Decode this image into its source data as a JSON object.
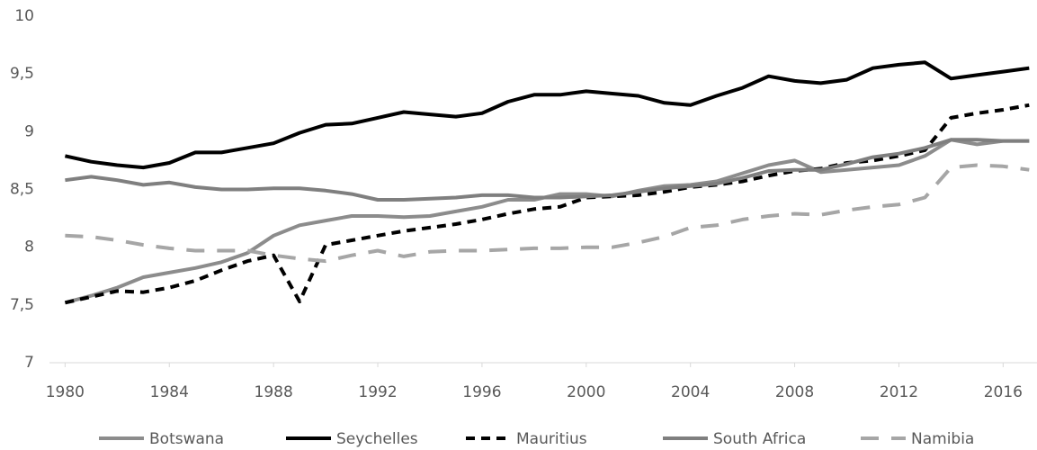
{
  "chart_data": {
    "type": "line",
    "x": [
      1980,
      1981,
      1982,
      1983,
      1984,
      1985,
      1986,
      1987,
      1988,
      1989,
      1990,
      1991,
      1992,
      1993,
      1994,
      1995,
      1996,
      1997,
      1998,
      1999,
      2000,
      2001,
      2002,
      2003,
      2004,
      2005,
      2006,
      2007,
      2008,
      2009,
      2010,
      2011,
      2012,
      2013,
      2014,
      2015,
      2016,
      2017
    ],
    "xlim": [
      1979.4,
      2017.3
    ],
    "xticks": [
      1980,
      1984,
      1988,
      1992,
      1996,
      2000,
      2004,
      2008,
      2012,
      2016
    ],
    "ylim": [
      7,
      10
    ],
    "yticks": [
      7,
      {
        "value": 7.5,
        "label": "7,5"
      },
      8,
      {
        "value": 8.5,
        "label": "8,5"
      },
      9,
      {
        "value": 9.5,
        "label": "9,5"
      },
      10
    ],
    "grid": false,
    "legend": "bottom",
    "series": [
      {
        "name": "Botswana",
        "color": "#8c8c8c",
        "style": "solid",
        "values": [
          7.52,
          7.58,
          7.65,
          7.74,
          7.78,
          7.82,
          7.87,
          7.95,
          8.1,
          8.19,
          8.23,
          8.27,
          8.27,
          8.26,
          8.27,
          8.31,
          8.35,
          8.41,
          8.41,
          8.46,
          8.46,
          8.44,
          8.49,
          8.53,
          8.54,
          8.57,
          8.64,
          8.71,
          8.75,
          8.65,
          8.67,
          8.69,
          8.71,
          8.79,
          8.93,
          8.89,
          8.92,
          8.92
        ]
      },
      {
        "name": "Seychelles",
        "color": "#000000",
        "style": "solid",
        "values": [
          8.79,
          8.74,
          8.71,
          8.69,
          8.73,
          8.82,
          8.82,
          8.86,
          8.9,
          8.99,
          9.06,
          9.07,
          9.12,
          9.17,
          9.15,
          9.13,
          9.16,
          9.26,
          9.32,
          9.32,
          9.35,
          9.33,
          9.31,
          9.25,
          9.23,
          9.31,
          9.38,
          9.48,
          9.44,
          9.42,
          9.45,
          9.55,
          9.58,
          9.6,
          9.46,
          9.49,
          9.52,
          9.55
        ]
      },
      {
        "name": "Mauritius",
        "color": "#000000",
        "style": "dashed",
        "values": [
          7.52,
          7.57,
          7.62,
          7.61,
          7.65,
          7.71,
          7.8,
          7.88,
          7.93,
          7.53,
          8.02,
          8.06,
          8.1,
          8.14,
          8.17,
          8.2,
          8.24,
          8.29,
          8.33,
          8.35,
          8.43,
          8.44,
          8.45,
          8.48,
          8.52,
          8.54,
          8.57,
          8.62,
          8.66,
          8.68,
          8.73,
          8.75,
          8.79,
          8.84,
          9.12,
          9.16,
          9.19,
          9.23
        ]
      },
      {
        "name": "South Africa",
        "color": "#7f7f7f",
        "style": "solid",
        "values": [
          8.58,
          8.61,
          8.58,
          8.54,
          8.56,
          8.52,
          8.5,
          8.5,
          8.51,
          8.51,
          8.49,
          8.46,
          8.41,
          8.41,
          8.42,
          8.43,
          8.45,
          8.45,
          8.43,
          8.43,
          8.44,
          8.45,
          8.48,
          8.51,
          8.53,
          8.55,
          8.6,
          8.66,
          8.67,
          8.67,
          8.72,
          8.78,
          8.81,
          8.86,
          8.93,
          8.93,
          8.92,
          8.92
        ]
      },
      {
        "name": "Namibia",
        "color": "#a6a6a6",
        "style": "dashed",
        "values": [
          8.1,
          8.09,
          8.06,
          8.02,
          7.99,
          7.97,
          7.97,
          7.97,
          7.93,
          7.9,
          7.88,
          7.93,
          7.97,
          7.92,
          7.96,
          7.97,
          7.97,
          7.98,
          7.99,
          7.99,
          8.0,
          8.0,
          8.04,
          8.09,
          8.17,
          8.19,
          8.24,
          8.27,
          8.29,
          8.28,
          8.32,
          8.35,
          8.37,
          8.43,
          8.69,
          8.71,
          8.7,
          8.67
        ]
      }
    ]
  }
}
